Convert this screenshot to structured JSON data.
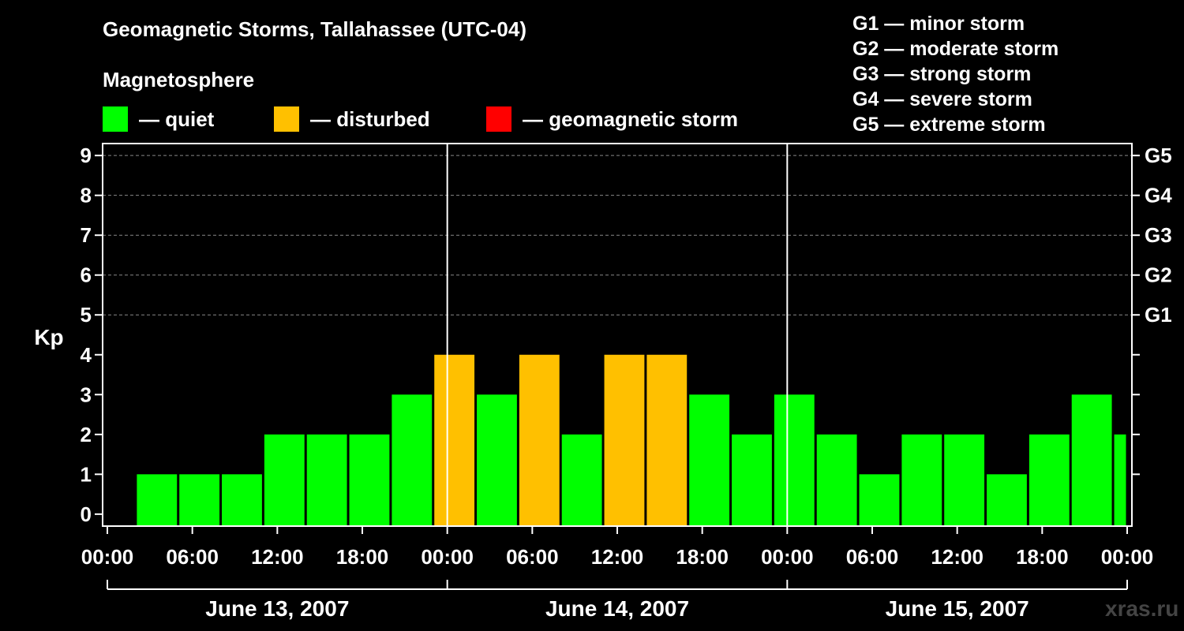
{
  "chart_data": {
    "type": "bar",
    "title": "Geomagnetic Storms, Tallahassee (UTC-04)",
    "subtitle": "Magnetosphere",
    "ylabel": "Kp",
    "ylim": [
      -0.3,
      9.3
    ],
    "yticks": [
      0,
      1,
      2,
      3,
      4,
      5,
      6,
      7,
      8,
      9
    ],
    "right_ticks": [
      {
        "value": 5,
        "label": "G1"
      },
      {
        "value": 6,
        "label": "G2"
      },
      {
        "value": 7,
        "label": "G3"
      },
      {
        "value": 8,
        "label": "G4"
      },
      {
        "value": 9,
        "label": "G5"
      }
    ],
    "x_range_hours": [
      0,
      72
    ],
    "xticks": [
      {
        "hour": 0,
        "label": "00:00"
      },
      {
        "hour": 6,
        "label": "06:00"
      },
      {
        "hour": 12,
        "label": "12:00"
      },
      {
        "hour": 18,
        "label": "18:00"
      },
      {
        "hour": 24,
        "label": "00:00"
      },
      {
        "hour": 30,
        "label": "06:00"
      },
      {
        "hour": 36,
        "label": "12:00"
      },
      {
        "hour": 42,
        "label": "18:00"
      },
      {
        "hour": 48,
        "label": "00:00"
      },
      {
        "hour": 54,
        "label": "06:00"
      },
      {
        "hour": 60,
        "label": "12:00"
      },
      {
        "hour": 66,
        "label": "18:00"
      },
      {
        "hour": 72,
        "label": "00:00"
      }
    ],
    "days": [
      {
        "label": "June 13, 2007",
        "start_hour": 0,
        "end_hour": 24
      },
      {
        "label": "June 14, 2007",
        "start_hour": 24,
        "end_hour": 48
      },
      {
        "label": "June 15, 2007",
        "start_hour": 48,
        "end_hour": 72
      }
    ],
    "bars": [
      {
        "start_hour": 2,
        "end_hour": 5,
        "value": 1,
        "level": "quiet"
      },
      {
        "start_hour": 5,
        "end_hour": 8,
        "value": 1,
        "level": "quiet"
      },
      {
        "start_hour": 8,
        "end_hour": 11,
        "value": 1,
        "level": "quiet"
      },
      {
        "start_hour": 11,
        "end_hour": 14,
        "value": 2,
        "level": "quiet"
      },
      {
        "start_hour": 14,
        "end_hour": 17,
        "value": 2,
        "level": "quiet"
      },
      {
        "start_hour": 17,
        "end_hour": 20,
        "value": 2,
        "level": "quiet"
      },
      {
        "start_hour": 20,
        "end_hour": 23,
        "value": 3,
        "level": "quiet"
      },
      {
        "start_hour": 23,
        "end_hour": 26,
        "value": 4,
        "level": "disturbed"
      },
      {
        "start_hour": 26,
        "end_hour": 29,
        "value": 3,
        "level": "quiet"
      },
      {
        "start_hour": 29,
        "end_hour": 32,
        "value": 4,
        "level": "disturbed"
      },
      {
        "start_hour": 32,
        "end_hour": 35,
        "value": 2,
        "level": "quiet"
      },
      {
        "start_hour": 35,
        "end_hour": 38,
        "value": 4,
        "level": "disturbed"
      },
      {
        "start_hour": 38,
        "end_hour": 41,
        "value": 4,
        "level": "disturbed"
      },
      {
        "start_hour": 41,
        "end_hour": 44,
        "value": 3,
        "level": "quiet"
      },
      {
        "start_hour": 44,
        "end_hour": 47,
        "value": 2,
        "level": "quiet"
      },
      {
        "start_hour": 47,
        "end_hour": 50,
        "value": 3,
        "level": "quiet"
      },
      {
        "start_hour": 50,
        "end_hour": 53,
        "value": 2,
        "level": "quiet"
      },
      {
        "start_hour": 53,
        "end_hour": 56,
        "value": 1,
        "level": "quiet"
      },
      {
        "start_hour": 56,
        "end_hour": 59,
        "value": 2,
        "level": "quiet"
      },
      {
        "start_hour": 59,
        "end_hour": 62,
        "value": 2,
        "level": "quiet"
      },
      {
        "start_hour": 62,
        "end_hour": 65,
        "value": 1,
        "level": "quiet"
      },
      {
        "start_hour": 65,
        "end_hour": 68,
        "value": 2,
        "level": "quiet"
      },
      {
        "start_hour": 68,
        "end_hour": 71,
        "value": 3,
        "level": "quiet"
      },
      {
        "start_hour": 71,
        "end_hour": 72,
        "value": 2,
        "level": "quiet"
      }
    ],
    "grid": true,
    "legend_position": "top"
  },
  "legend": {
    "items": [
      {
        "key": "quiet",
        "label": "— quiet",
        "color": "#00ff00"
      },
      {
        "key": "disturbed",
        "label": "— disturbed",
        "color": "#ffc000"
      },
      {
        "key": "storm",
        "label": "— geomagnetic storm",
        "color": "#ff0000"
      }
    ]
  },
  "g_scale": [
    "G1 — minor storm",
    "G2 — moderate storm",
    "G3 — strong storm",
    "G4 — severe storm",
    "G5 — extreme storm"
  ],
  "watermark": "xras.ru"
}
